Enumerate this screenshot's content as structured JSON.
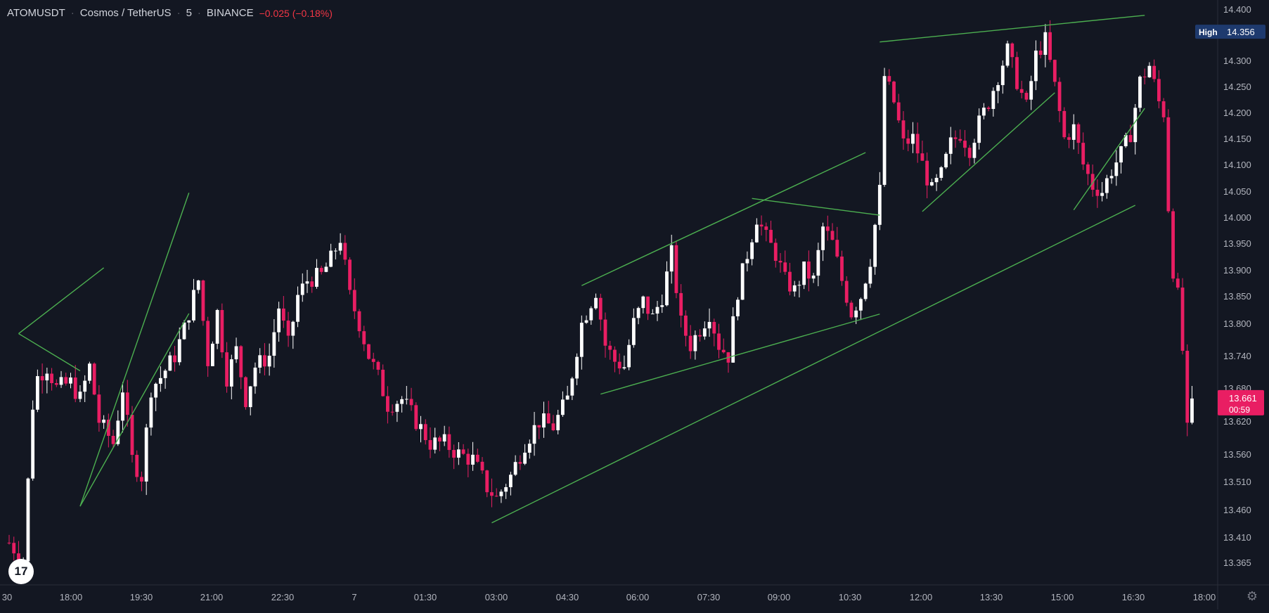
{
  "header": {
    "symbol": "ATOMUSDT",
    "name": "Cosmos / TetherUS",
    "interval": "5",
    "exchange": "BINANCE",
    "change": "−0.025 (−0.18%)"
  },
  "colors": {
    "background": "#131722",
    "up": "#ffffff",
    "down": "#e91e63",
    "trendline": "#4caf50",
    "axis_text": "#b2b5be",
    "high_label_bg": "#1e3a6e",
    "last_price_bg": "#e91e63"
  },
  "icons": {
    "logo": "tradingview-logo",
    "settings": "gear-icon"
  },
  "logo_text": "17",
  "settings_glyph": "⚙",
  "price_labels": {
    "high_label": "High",
    "high_value": "14.356",
    "last_price": "13.661",
    "countdown": "00:59"
  },
  "chart_data": {
    "type": "candlestick",
    "y_ticks": [
      "14.400",
      "14.300",
      "14.250",
      "14.200",
      "14.150",
      "14.100",
      "14.050",
      "14.000",
      "13.950",
      "13.900",
      "13.850",
      "13.800",
      "13.740",
      "13.680",
      "13.620",
      "13.560",
      "13.510",
      "13.460",
      "13.410",
      "13.365"
    ],
    "x_ticks": [
      "30",
      "18:00",
      "19:30",
      "21:00",
      "22:30",
      "7",
      "01:30",
      "03:00",
      "04:30",
      "06:00",
      "07:30",
      "09:00",
      "10:30",
      "12:00",
      "13:30",
      "15:00",
      "16:30",
      "18:00"
    ],
    "x_range": [
      "17:04",
      "18:54 (next day)"
    ],
    "y_range": [
      13.33,
      14.42
    ],
    "high": 14.356,
    "last": 13.661,
    "close_path": [
      [
        0,
        13.4
      ],
      [
        3,
        13.37
      ],
      [
        5,
        13.65
      ],
      [
        6,
        13.7
      ],
      [
        8,
        13.72
      ],
      [
        10,
        13.68
      ],
      [
        13,
        13.69
      ],
      [
        15,
        13.66
      ],
      [
        17,
        13.72
      ],
      [
        19,
        13.62
      ],
      [
        22,
        13.58
      ],
      [
        24,
        13.68
      ],
      [
        26,
        13.55
      ],
      [
        28,
        13.52
      ],
      [
        30,
        13.68
      ],
      [
        32,
        13.7
      ],
      [
        35,
        13.74
      ],
      [
        37,
        13.79
      ],
      [
        40,
        13.88
      ],
      [
        42,
        13.73
      ],
      [
        44,
        13.82
      ],
      [
        46,
        13.7
      ],
      [
        48,
        13.75
      ],
      [
        50,
        13.66
      ],
      [
        52,
        13.72
      ],
      [
        55,
        13.74
      ],
      [
        57,
        13.83
      ],
      [
        59,
        13.76
      ],
      [
        61,
        13.85
      ],
      [
        63,
        13.88
      ],
      [
        66,
        13.89
      ],
      [
        68,
        13.92
      ],
      [
        70,
        13.96
      ],
      [
        72,
        13.85
      ],
      [
        74,
        13.8
      ],
      [
        76,
        13.74
      ],
      [
        78,
        13.7
      ],
      [
        80,
        13.65
      ],
      [
        83,
        13.66
      ],
      [
        86,
        13.62
      ],
      [
        89,
        13.58
      ],
      [
        92,
        13.58
      ],
      [
        95,
        13.56
      ],
      [
        98,
        13.55
      ],
      [
        101,
        13.5
      ],
      [
        103,
        13.48
      ],
      [
        106,
        13.52
      ],
      [
        109,
        13.58
      ],
      [
        112,
        13.62
      ],
      [
        115,
        13.61
      ],
      [
        118,
        13.66
      ],
      [
        121,
        13.8
      ],
      [
        124,
        13.86
      ],
      [
        126,
        13.76
      ],
      [
        128,
        13.73
      ],
      [
        130,
        13.72
      ],
      [
        132,
        13.8
      ],
      [
        134,
        13.84
      ],
      [
        136,
        13.81
      ],
      [
        138,
        13.85
      ],
      [
        140,
        13.93
      ],
      [
        142,
        13.8
      ],
      [
        144,
        13.76
      ],
      [
        146,
        13.79
      ],
      [
        148,
        13.82
      ],
      [
        150,
        13.76
      ],
      [
        152,
        13.74
      ],
      [
        154,
        13.86
      ],
      [
        156,
        13.93
      ],
      [
        158,
        14.0
      ],
      [
        160,
        13.96
      ],
      [
        162,
        13.93
      ],
      [
        164,
        13.88
      ],
      [
        166,
        13.86
      ],
      [
        168,
        13.9
      ],
      [
        170,
        13.88
      ],
      [
        172,
        13.98
      ],
      [
        174,
        13.95
      ],
      [
        176,
        13.88
      ],
      [
        178,
        13.82
      ],
      [
        180,
        13.85
      ],
      [
        182,
        13.92
      ],
      [
        184,
        14.05
      ],
      [
        185,
        14.27
      ],
      [
        187,
        14.22
      ],
      [
        189,
        14.14
      ],
      [
        191,
        14.15
      ],
      [
        193,
        14.1
      ],
      [
        195,
        14.05
      ],
      [
        197,
        14.08
      ],
      [
        199,
        14.14
      ],
      [
        201,
        14.16
      ],
      [
        203,
        14.13
      ],
      [
        205,
        14.18
      ],
      [
        207,
        14.22
      ],
      [
        209,
        14.27
      ],
      [
        211,
        14.32
      ],
      [
        213,
        14.26
      ],
      [
        215,
        14.21
      ],
      [
        217,
        14.31
      ],
      [
        219,
        14.34
      ],
      [
        221,
        14.25
      ],
      [
        223,
        14.15
      ],
      [
        225,
        14.17
      ],
      [
        227,
        14.1
      ],
      [
        229,
        14.06
      ],
      [
        231,
        14.05
      ],
      [
        233,
        14.09
      ],
      [
        235,
        14.12
      ],
      [
        237,
        14.16
      ],
      [
        239,
        14.26
      ],
      [
        241,
        14.29
      ],
      [
        243,
        14.22
      ],
      [
        244,
        14.2
      ],
      [
        245,
        14.02
      ],
      [
        246,
        13.9
      ],
      [
        247,
        13.85
      ],
      [
        248,
        13.75
      ],
      [
        249,
        13.6
      ],
      [
        250,
        13.66
      ]
    ],
    "trendlines": [
      [
        [
          2,
          13.781
        ],
        [
          20,
          13.904
        ]
      ],
      [
        [
          2,
          13.781
        ],
        [
          15,
          13.712
        ]
      ],
      [
        [
          15,
          13.466
        ],
        [
          38,
          13.818
        ]
      ],
      [
        [
          15,
          13.466
        ],
        [
          38,
          14.047
        ]
      ],
      [
        [
          102,
          13.436
        ],
        [
          238,
          14.023
        ]
      ],
      [
        [
          121,
          13.87
        ],
        [
          181,
          14.123
        ]
      ],
      [
        [
          125,
          13.669
        ],
        [
          184,
          13.817
        ]
      ],
      [
        [
          157,
          14.036
        ],
        [
          184,
          14.004
        ]
      ],
      [
        [
          184,
          14.336
        ],
        [
          240,
          14.388
        ]
      ],
      [
        [
          193,
          14.011
        ],
        [
          221,
          14.238
        ]
      ],
      [
        [
          225,
          14.014
        ],
        [
          240,
          14.208
        ]
      ]
    ]
  }
}
